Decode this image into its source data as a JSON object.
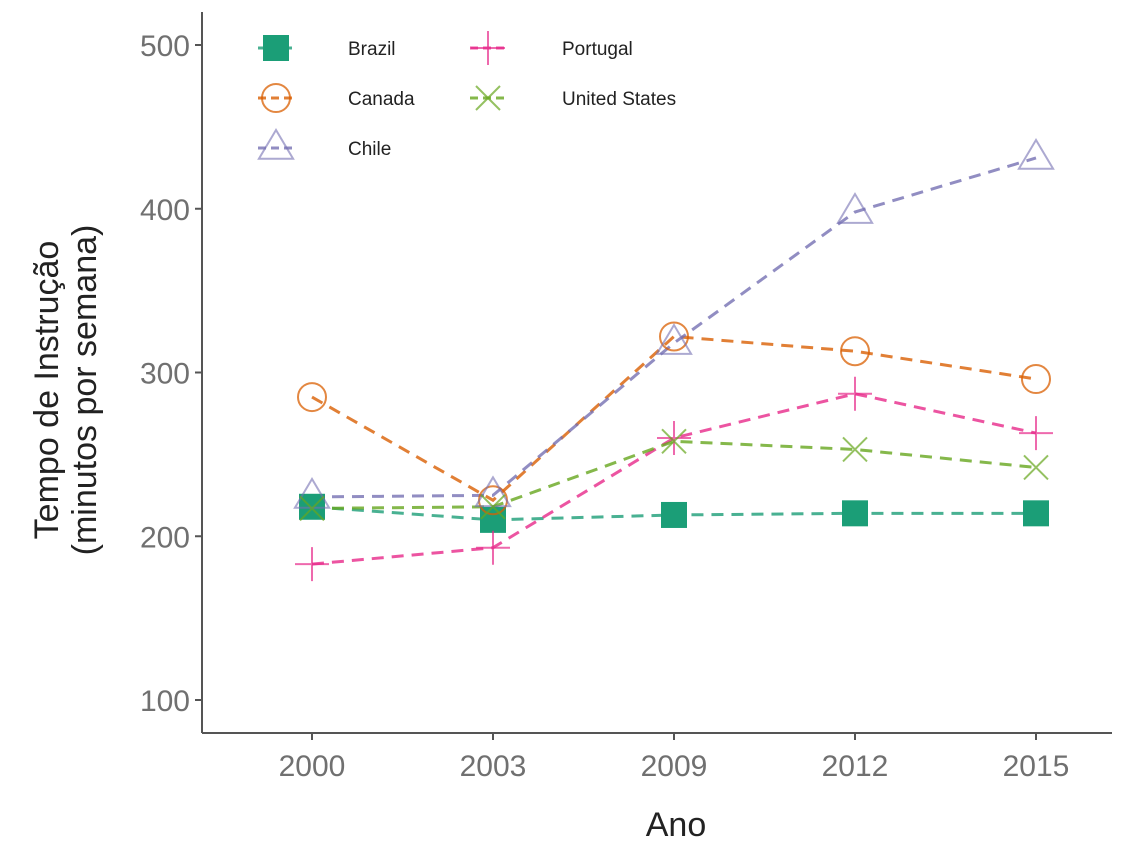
{
  "chart_data": {
    "type": "line",
    "title": "",
    "xlabel": "Ano",
    "ylabel_lines": [
      "Tempo de Instrução",
      "(minutos por semana)"
    ],
    "categories": [
      "2000",
      "2003",
      "2009",
      "2012",
      "2015"
    ],
    "ylim": [
      90,
      520
    ],
    "yticks": [
      100,
      200,
      300,
      400,
      500
    ],
    "grid": false,
    "legend_position": "top-left",
    "series": [
      {
        "name": "Brazil",
        "marker": "filled-square",
        "color": "#1b9e77",
        "values": [
          218,
          210,
          213,
          214,
          214
        ]
      },
      {
        "name": "Canada",
        "marker": "open-circle",
        "color": "#d95f02",
        "values": [
          285,
          222,
          322,
          313,
          296
        ]
      },
      {
        "name": "Chile",
        "marker": "open-triangle",
        "color": "#7570b3",
        "values": [
          224,
          225,
          318,
          398,
          431
        ]
      },
      {
        "name": "Portugal",
        "marker": "plus",
        "color": "#e7298a",
        "values": [
          183,
          193,
          260,
          287,
          263
        ]
      },
      {
        "name": "United States",
        "marker": "cross",
        "color": "#66a61e",
        "values": [
          217,
          218,
          258,
          253,
          242
        ]
      }
    ]
  }
}
